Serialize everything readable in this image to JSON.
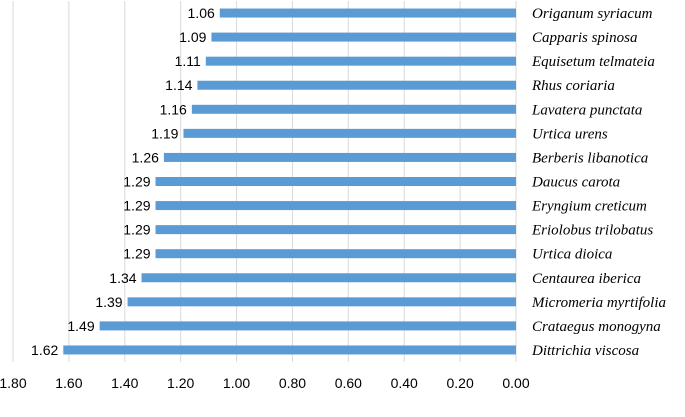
{
  "chart_data": {
    "type": "bar",
    "orientation": "horizontal",
    "x_axis_reversed": true,
    "categories": [
      "Origanum syriacum",
      "Capparis spinosa",
      "Equisetum telmateia",
      "Rhus coriaria",
      "Lavatera punctata",
      "Urtica urens",
      "Berberis libanotica",
      "Daucus carota",
      "Eryngium creticum",
      "Eriolobus trilobatus",
      "Urtica dioica",
      "Centaurea iberica",
      "Micromeria myrtifolia",
      "Crataegus monogyna",
      "Dittrichia viscosa"
    ],
    "values": [
      1.06,
      1.09,
      1.11,
      1.14,
      1.16,
      1.19,
      1.26,
      1.29,
      1.29,
      1.29,
      1.29,
      1.34,
      1.39,
      1.49,
      1.62
    ],
    "value_labels": [
      "1.06",
      "1.09",
      "1.11",
      "1.14",
      "1.16",
      "1.19",
      "1.26",
      "1.29",
      "1.29",
      "1.29",
      "1.29",
      "1.34",
      "1.39",
      "1.49",
      "1.62"
    ],
    "xlim": [
      0,
      1.8
    ],
    "x_ticks": [
      "1.80",
      "1.60",
      "1.40",
      "1.20",
      "1.00",
      "0.80",
      "0.60",
      "0.40",
      "0.20",
      "0.00"
    ],
    "x_tick_values": [
      1.8,
      1.6,
      1.4,
      1.2,
      1.0,
      0.8,
      0.6,
      0.4,
      0.2,
      0.0
    ],
    "grid": true,
    "bar_color": "#5b9bd5",
    "title": "",
    "xlabel": "",
    "ylabel": ""
  }
}
